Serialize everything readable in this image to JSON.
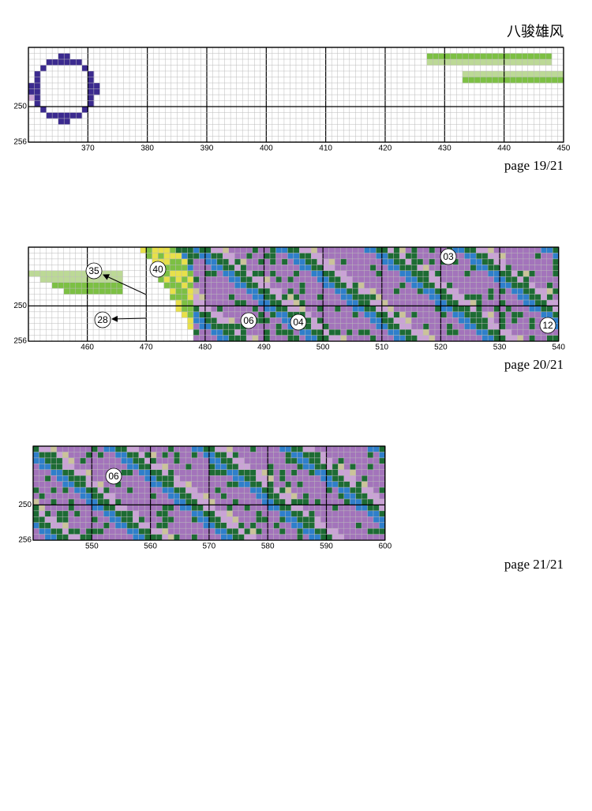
{
  "title": "八骏雄风",
  "pages": [
    {
      "x_labels": [
        370,
        380,
        390,
        400,
        410,
        420,
        430,
        440,
        450
      ],
      "y_labels": [
        250,
        256
      ],
      "symbols": [],
      "footer": "page 19/21"
    },
    {
      "x_labels": [
        460,
        470,
        480,
        490,
        500,
        510,
        520,
        530,
        540
      ],
      "y_labels": [
        250,
        256
      ],
      "symbols": [
        "35",
        "40",
        "28",
        "06",
        "04",
        "03",
        "12"
      ],
      "footer": "page 20/21"
    },
    {
      "x_labels": [
        550,
        560,
        570,
        580,
        590,
        600
      ],
      "y_labels": [
        250,
        256
      ],
      "symbols": [
        "06"
      ],
      "footer": "page 21/21"
    }
  ]
}
